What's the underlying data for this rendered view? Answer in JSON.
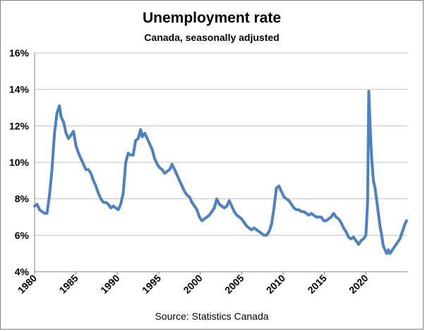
{
  "chart_data": {
    "type": "line",
    "title": "Unemployment rate",
    "subtitle": "Canada, seasonally adjusted",
    "source": "Source: Statistics Canada",
    "xlabel": "",
    "ylabel": "",
    "ylim": [
      4,
      16
    ],
    "xlim": [
      1980,
      2025
    ],
    "y_ticks": [
      "4%",
      "6%",
      "8%",
      "10%",
      "12%",
      "14%",
      "16%"
    ],
    "y_tick_values": [
      4,
      6,
      8,
      10,
      12,
      14,
      16
    ],
    "x_ticks": [
      "1980",
      "1985",
      "1990",
      "1995",
      "2000",
      "2005",
      "2010",
      "2015",
      "2020"
    ],
    "x_tick_values": [
      1980,
      1985,
      1990,
      1995,
      2000,
      2005,
      2010,
      2015,
      2020
    ],
    "grid": true,
    "legend": "none",
    "line_color": "#4f81bd",
    "series": [
      {
        "x": [
          1980.0,
          1980.3,
          1980.6,
          1980.9,
          1981.2,
          1981.5,
          1981.8,
          1982.1,
          1982.4,
          1982.7,
          1983.0,
          1983.2,
          1983.5,
          1983.8,
          1984.1,
          1984.4,
          1984.7,
          1985.0,
          1985.3,
          1985.6,
          1985.9,
          1986.2,
          1986.5,
          1986.8,
          1987.1,
          1987.4,
          1987.7,
          1988.0,
          1988.3,
          1988.6,
          1988.9,
          1989.2,
          1989.5,
          1989.8,
          1990.1,
          1990.4,
          1990.7,
          1991.0,
          1991.3,
          1991.6,
          1991.9,
          1992.2,
          1992.5,
          1992.8,
          1993.0,
          1993.3,
          1993.6,
          1993.9,
          1994.2,
          1994.5,
          1994.8,
          1995.1,
          1995.4,
          1995.7,
          1996.0,
          1996.3,
          1996.6,
          1996.9,
          1997.2,
          1997.5,
          1997.8,
          1998.1,
          1998.4,
          1998.7,
          1999.0,
          1999.3,
          1999.6,
          1999.9,
          2000.2,
          2000.5,
          2000.8,
          2001.1,
          2001.4,
          2001.7,
          2002.0,
          2002.3,
          2002.6,
          2002.9,
          2003.2,
          2003.5,
          2003.8,
          2004.1,
          2004.4,
          2004.7,
          2005.0,
          2005.3,
          2005.6,
          2005.9,
          2006.2,
          2006.5,
          2006.8,
          2007.1,
          2007.4,
          2007.7,
          2008.0,
          2008.3,
          2008.6,
          2008.9,
          2009.2,
          2009.5,
          2009.8,
          2010.1,
          2010.4,
          2010.7,
          2011.0,
          2011.3,
          2011.6,
          2011.9,
          2012.2,
          2012.5,
          2012.8,
          2013.1,
          2013.4,
          2013.7,
          2014.0,
          2014.3,
          2014.6,
          2014.9,
          2015.2,
          2015.5,
          2015.8,
          2016.1,
          2016.4,
          2016.7,
          2017.0,
          2017.3,
          2017.6,
          2017.9,
          2018.2,
          2018.5,
          2018.8,
          2019.1,
          2019.4,
          2019.7,
          2020.0,
          2020.2,
          2020.35,
          2020.5,
          2020.7,
          2020.9,
          2021.1,
          2021.3,
          2021.5,
          2021.7,
          2021.9,
          2022.1,
          2022.3,
          2022.5,
          2022.7,
          2022.9,
          2023.2,
          2023.5,
          2023.8,
          2024.1,
          2024.4,
          2024.7,
          2024.9
        ],
        "y": [
          7.6,
          7.7,
          7.4,
          7.3,
          7.2,
          7.2,
          8.2,
          9.6,
          11.6,
          12.7,
          13.1,
          12.5,
          12.2,
          11.6,
          11.3,
          11.5,
          11.7,
          10.9,
          10.5,
          10.2,
          9.9,
          9.6,
          9.6,
          9.4,
          9.0,
          8.7,
          8.3,
          8.0,
          7.8,
          7.8,
          7.7,
          7.5,
          7.6,
          7.5,
          7.4,
          7.7,
          8.3,
          10.0,
          10.5,
          10.4,
          10.4,
          11.2,
          11.3,
          11.8,
          11.4,
          11.6,
          11.3,
          11.0,
          10.7,
          10.2,
          9.9,
          9.7,
          9.6,
          9.4,
          9.5,
          9.6,
          9.9,
          9.6,
          9.3,
          9.0,
          8.7,
          8.4,
          8.2,
          8.1,
          7.8,
          7.6,
          7.4,
          7.0,
          6.8,
          6.9,
          7.0,
          7.1,
          7.3,
          7.5,
          8.0,
          7.7,
          7.6,
          7.5,
          7.6,
          7.9,
          7.6,
          7.3,
          7.1,
          7.0,
          6.9,
          6.7,
          6.5,
          6.4,
          6.3,
          6.4,
          6.3,
          6.2,
          6.1,
          6.0,
          6.0,
          6.2,
          6.6,
          7.5,
          8.6,
          8.7,
          8.4,
          8.1,
          8.0,
          7.9,
          7.7,
          7.5,
          7.4,
          7.4,
          7.3,
          7.3,
          7.2,
          7.1,
          7.2,
          7.1,
          7.0,
          7.0,
          7.0,
          6.8,
          6.8,
          6.9,
          7.0,
          7.2,
          7.0,
          6.9,
          6.7,
          6.4,
          6.2,
          5.9,
          5.8,
          5.9,
          5.7,
          5.5,
          5.7,
          5.8,
          6.0,
          7.8,
          13.9,
          12.0,
          10.2,
          9.0,
          8.6,
          7.9,
          7.2,
          6.5,
          6.0,
          5.4,
          5.2,
          5.0,
          5.2,
          5.0,
          5.2,
          5.4,
          5.6,
          5.8,
          6.2,
          6.6,
          6.8
        ]
      }
    ]
  }
}
